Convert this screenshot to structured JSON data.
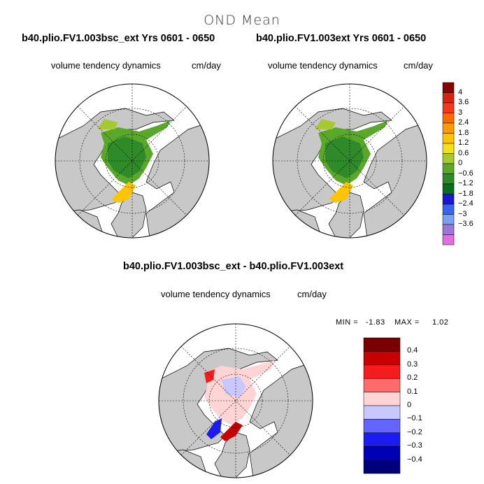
{
  "main_title": "OND Mean",
  "panels": {
    "left": {
      "title": "b40.plio.FV1.003bsc_ext  Yrs 0601 - 0650",
      "variable": "volume tendency dynamics",
      "units": "cm/day"
    },
    "right": {
      "title": "b40.plio.FV1.003ext  Yrs 0601 - 0650",
      "variable": "volume tendency dynamics",
      "units": "cm/day"
    },
    "diff": {
      "title": "b40.plio.FV1.003bsc_ext - b40.plio.FV1.003ext",
      "variable": "volume tendency dynamics",
      "units": "cm/day",
      "min_label": "MIN =",
      "min_value": "-1.83",
      "max_label": "MAX =",
      "max_value": "1.02"
    }
  },
  "colorbar_top": {
    "labels": [
      "4",
      "3.6",
      "3",
      "2.4",
      "1.8",
      "1.2",
      "0.6",
      "0",
      "−0.6",
      "−1.2",
      "−1.8",
      "−2.4",
      "−3",
      "−3.6"
    ],
    "colors": [
      "#8b0000",
      "#d62410",
      "#f03a1e",
      "#ff6a00",
      "#ff9a00",
      "#ffc400",
      "#f2e01a",
      "#a6c832",
      "#5aa82a",
      "#2f8a2a",
      "#0a6e1a",
      "#1818d6",
      "#3a64f0",
      "#7aa0f0",
      "#9a78d8",
      "#e070e0"
    ]
  },
  "colorbar_diff": {
    "labels": [
      "0.4",
      "0.3",
      "0.2",
      "0.1",
      "0",
      "−0.1",
      "−0.2",
      "−0.3",
      "−0.4"
    ],
    "colors": [
      "#7a0000",
      "#c80000",
      "#f41c1c",
      "#ff6a6a",
      "#ffd4d4",
      "#c8c8ff",
      "#6464ff",
      "#1c1cf0",
      "#0000b4",
      "#00007a"
    ]
  },
  "map_colors": {
    "land": "#c8c8c8",
    "coast": "#000000",
    "ocean": "#ffffff"
  }
}
